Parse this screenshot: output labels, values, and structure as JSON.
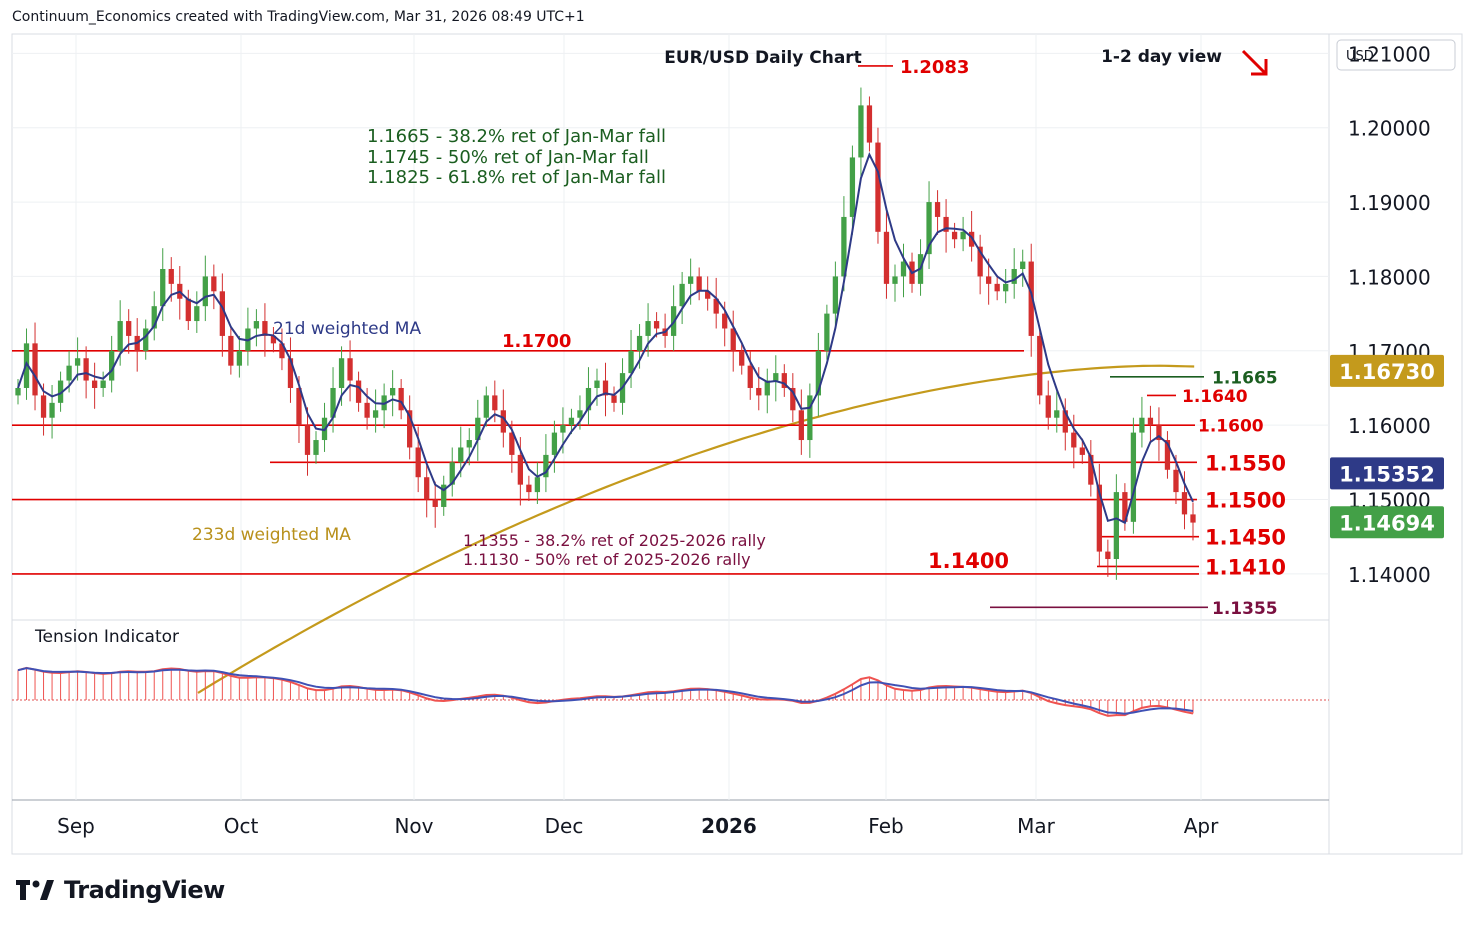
{
  "header": {
    "attribution": "Continuum_Economics created with TradingView.com, Mar 31, 2026 08:49 UTC+1"
  },
  "footer": {
    "brand": "TradingView"
  },
  "colors": {
    "level": "#e00000",
    "ma21": "#2e3a87",
    "ma233": "#c49a1c",
    "fib_green": "#1b5e20",
    "fib_maroon": "#7a1040",
    "up": "#43a047",
    "down": "#d32f2f",
    "tension_fast": "#ef5350",
    "tension_slow": "#3f51b5"
  },
  "chart_data": {
    "type": "candlestick",
    "title": "EUR/USD Daily Chart",
    "view_note": "1-2 day view",
    "view_direction_icon": "arrow-down-right-icon",
    "currency": "USD",
    "x_ticks": [
      "Sep",
      "Oct",
      "Nov",
      "Dec",
      "2026",
      "Feb",
      "Mar",
      "Apr"
    ],
    "y_ticks": [
      "1.21000",
      "1.20000",
      "1.19000",
      "1.18000",
      "1.17000",
      "1.16000",
      "1.15000",
      "1.14000"
    ],
    "ylim": [
      1.1338,
      1.2126
    ],
    "price_badges": [
      {
        "name": "233d",
        "value": "1.16730",
        "color": "#c49a1c"
      },
      {
        "name": "21d",
        "value": "1.15352",
        "color": "#2e3a87"
      },
      {
        "name": "last",
        "value": "1.14694",
        "color": "#43a047"
      }
    ],
    "levels": [
      {
        "value": 1.2083,
        "label": "1.2083"
      },
      {
        "value": 1.17,
        "label": "1.1700"
      },
      {
        "value": 1.1665,
        "label": "1.1665"
      },
      {
        "value": 1.164,
        "label": "1.1640"
      },
      {
        "value": 1.16,
        "label": "1.1600"
      },
      {
        "value": 1.155,
        "label": "1.1550"
      },
      {
        "value": 1.15,
        "label": "1.1500"
      },
      {
        "value": 1.145,
        "label": "1.1450"
      },
      {
        "value": 1.141,
        "label": "1.1410"
      },
      {
        "value": 1.14,
        "label": "1.1400"
      },
      {
        "value": 1.1355,
        "label": "1.1355"
      }
    ],
    "annotations_resistance": [
      "1.1665 - 38.2% ret of Jan-Mar fall",
      "1.1745 - 50% ret of Jan-Mar fall",
      "1.1825 - 61.8% ret of Jan-Mar fall"
    ],
    "annotations_support": [
      "1.1355 - 38.2% ret of 2025-2026 rally",
      "1.1130 - 50% ret of 2025-2026 rally"
    ],
    "ma_labels": {
      "ma21": "21d weighted MA",
      "ma233": "233d weighted MA"
    },
    "indicator_title": "Tension Indicator",
    "closes": [
      1.165,
      1.171,
      1.164,
      1.161,
      1.163,
      1.166,
      1.168,
      1.169,
      1.166,
      1.165,
      1.166,
      1.17,
      1.174,
      1.172,
      1.17,
      1.173,
      1.176,
      1.181,
      1.179,
      1.177,
      1.174,
      1.176,
      1.18,
      1.178,
      1.172,
      1.168,
      1.17,
      1.173,
      1.174,
      1.172,
      1.171,
      1.169,
      1.165,
      1.16,
      1.156,
      1.158,
      1.161,
      1.165,
      1.169,
      1.166,
      1.163,
      1.161,
      1.162,
      1.164,
      1.165,
      1.162,
      1.157,
      1.153,
      1.15,
      1.149,
      1.152,
      1.155,
      1.157,
      1.158,
      1.161,
      1.164,
      1.162,
      1.159,
      1.156,
      1.152,
      1.151,
      1.153,
      1.156,
      1.159,
      1.16,
      1.161,
      1.162,
      1.165,
      1.166,
      1.164,
      1.163,
      1.167,
      1.17,
      1.172,
      1.174,
      1.173,
      1.172,
      1.176,
      1.179,
      1.18,
      1.178,
      1.177,
      1.175,
      1.173,
      1.17,
      1.168,
      1.165,
      1.164,
      1.166,
      1.167,
      1.165,
      1.162,
      1.158,
      1.164,
      1.17,
      1.175,
      1.18,
      1.188,
      1.196,
      1.203,
      1.198,
      1.186,
      1.179,
      1.18,
      1.182,
      1.179,
      1.183,
      1.19,
      1.188,
      1.186,
      1.185,
      1.186,
      1.184,
      1.18,
      1.179,
      1.178,
      1.179,
      1.181,
      1.182,
      1.172,
      1.164,
      1.161,
      1.162,
      1.159,
      1.157,
      1.156,
      1.152,
      1.143,
      1.142,
      1.151,
      1.147,
      1.159,
      1.161,
      1.16,
      1.158,
      1.154,
      1.151,
      1.148,
      1.1469
    ]
  }
}
